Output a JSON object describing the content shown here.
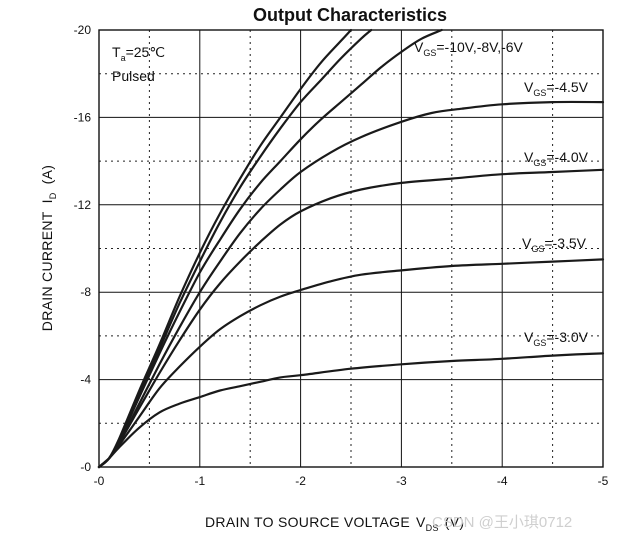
{
  "chart_data": {
    "type": "line",
    "title": "Output Characteristics",
    "xlabel": "DRAIN TO SOURCE VOLTAGE",
    "xlabel_symbol": "V",
    "xlabel_symbol_sub": "DS",
    "xlabel_unit": "(V)",
    "ylabel": "DRAIN CURRENT",
    "ylabel_symbol": "I",
    "ylabel_symbol_sub": "D",
    "ylabel_unit": "(A)",
    "xlim": [
      0,
      -5
    ],
    "ylim": [
      0,
      -20
    ],
    "x_ticks": [
      "-0",
      "-1",
      "-2",
      "-3",
      "-4",
      "-5"
    ],
    "y_ticks": [
      "-0",
      "-4",
      "-8",
      "-12",
      "-16",
      "-20"
    ],
    "x_tick_values": [
      0,
      -1,
      -2,
      -3,
      -4,
      -5
    ],
    "y_tick_values": [
      0,
      -4,
      -8,
      -12,
      -16,
      -20
    ],
    "grid": true,
    "annotations": {
      "temp_symbol": "T",
      "temp_sub": "a",
      "temp_value": "=25℃",
      "mode": "Pulsed"
    },
    "series": [
      {
        "label_symbol": "V",
        "label_sub": "GS",
        "label_value": "=-10V,-8V,-6V",
        "x": [
          0,
          -0.1,
          -0.2,
          -0.4,
          -0.6,
          -0.8,
          -1.0,
          -1.2,
          -1.4,
          -1.6,
          -1.8,
          -2.0,
          -2.2,
          -2.4,
          -2.5
        ],
        "y": [
          0,
          -0.4,
          -1.3,
          -3.5,
          -5.6,
          -7.8,
          -9.8,
          -11.6,
          -13.2,
          -14.7,
          -16.0,
          -17.3,
          -18.5,
          -19.5,
          -20.0
        ]
      },
      {
        "x": [
          0,
          -0.1,
          -0.2,
          -0.4,
          -0.6,
          -0.8,
          -1.0,
          -1.2,
          -1.4,
          -1.6,
          -1.8,
          -2.0,
          -2.2,
          -2.4,
          -2.6,
          -2.7
        ],
        "y": [
          0,
          -0.4,
          -1.2,
          -3.3,
          -5.4,
          -7.5,
          -9.4,
          -11.2,
          -12.8,
          -14.2,
          -15.5,
          -16.7,
          -17.7,
          -18.7,
          -19.6,
          -20.0
        ]
      },
      {
        "x": [
          0,
          -0.1,
          -0.2,
          -0.4,
          -0.6,
          -0.8,
          -1.0,
          -1.2,
          -1.4,
          -1.6,
          -1.8,
          -2.0,
          -2.2,
          -2.4,
          -2.6,
          -2.8,
          -3.0,
          -3.2,
          -3.4
        ],
        "y": [
          0,
          -0.4,
          -1.2,
          -3.2,
          -5.2,
          -7.1,
          -8.9,
          -10.4,
          -11.8,
          -13.0,
          -14.0,
          -15.0,
          -15.9,
          -16.7,
          -17.5,
          -18.3,
          -19.0,
          -19.6,
          -20.0
        ]
      },
      {
        "label_symbol": "V",
        "label_sub": "GS",
        "label_value": "=-4.5V",
        "x": [
          0,
          -0.1,
          -0.2,
          -0.4,
          -0.6,
          -0.8,
          -1.0,
          -1.2,
          -1.4,
          -1.6,
          -1.8,
          -2.0,
          -2.3,
          -2.6,
          -3.0,
          -3.3,
          -3.6,
          -4.0,
          -4.5,
          -5.0
        ],
        "y": [
          0,
          -0.4,
          -1.1,
          -2.9,
          -4.7,
          -6.4,
          -8.0,
          -9.4,
          -10.7,
          -11.8,
          -12.7,
          -13.5,
          -14.4,
          -15.1,
          -15.8,
          -16.2,
          -16.4,
          -16.6,
          -16.7,
          -16.7
        ]
      },
      {
        "label_symbol": "V",
        "label_sub": "GS",
        "label_value": "=-4.0V",
        "x": [
          0,
          -0.1,
          -0.2,
          -0.4,
          -0.6,
          -0.8,
          -1.0,
          -1.2,
          -1.4,
          -1.6,
          -1.8,
          -2.0,
          -2.3,
          -2.6,
          -3.0,
          -3.5,
          -4.0,
          -4.5,
          -5.0
        ],
        "y": [
          0,
          -0.4,
          -1.1,
          -2.7,
          -4.3,
          -5.8,
          -7.2,
          -8.4,
          -9.4,
          -10.3,
          -11.1,
          -11.7,
          -12.3,
          -12.7,
          -13.0,
          -13.2,
          -13.4,
          -13.5,
          -13.6
        ]
      },
      {
        "label_symbol": "V",
        "label_sub": "GS",
        "label_value": "=-3.5V",
        "x": [
          0,
          -0.1,
          -0.2,
          -0.4,
          -0.6,
          -0.8,
          -1.0,
          -1.2,
          -1.4,
          -1.6,
          -1.8,
          -2.0,
          -2.3,
          -2.6,
          -3.0,
          -3.5,
          -4.0,
          -4.5,
          -5.0
        ],
        "y": [
          0,
          -0.4,
          -1.0,
          -2.3,
          -3.6,
          -4.6,
          -5.5,
          -6.3,
          -6.9,
          -7.4,
          -7.8,
          -8.1,
          -8.5,
          -8.8,
          -9.0,
          -9.2,
          -9.3,
          -9.4,
          -9.5
        ]
      },
      {
        "label_symbol": "V",
        "label_sub": "GS",
        "label_value": "=-3.0V",
        "x": [
          0,
          -0.1,
          -0.2,
          -0.4,
          -0.6,
          -0.8,
          -1.0,
          -1.2,
          -1.4,
          -1.6,
          -1.8,
          -2.0,
          -2.5,
          -3.0,
          -3.5,
          -4.0,
          -4.5,
          -5.0
        ],
        "y": [
          0,
          -0.4,
          -0.9,
          -1.8,
          -2.5,
          -2.9,
          -3.2,
          -3.5,
          -3.7,
          -3.9,
          -4.1,
          -4.2,
          -4.5,
          -4.7,
          -4.85,
          -4.95,
          -5.1,
          -5.2
        ]
      }
    ]
  },
  "watermark": "CSDN @王小琪0712"
}
